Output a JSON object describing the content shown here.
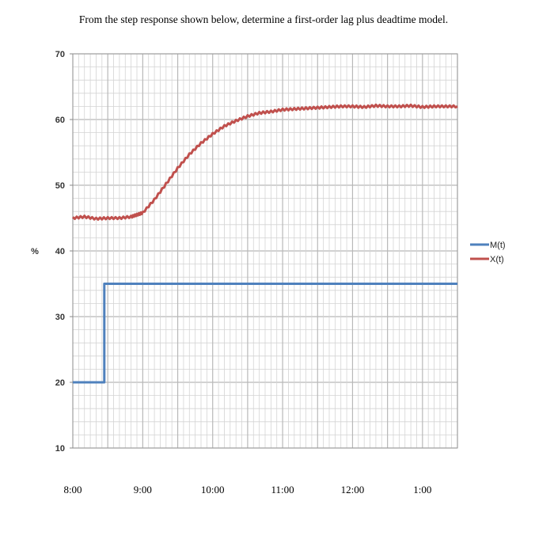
{
  "prompt": "From the step response shown below, determine a first-order lag plus deadtime model.",
  "chart_data": {
    "type": "line",
    "title": "",
    "xlabel": "",
    "ylabel": "%",
    "ylim": [
      10,
      70
    ],
    "y_ticks": [
      10,
      20,
      30,
      40,
      50,
      60,
      70
    ],
    "x_tick_labels": [
      "8:00",
      "9:00",
      "10:00",
      "11:00",
      "12:00",
      "1:00"
    ],
    "x_unit": "minutes after 8:00",
    "xlim": [
      0,
      330
    ],
    "grid": true,
    "legend": "right",
    "series": [
      {
        "name": "M(t)",
        "color": "#4f81bd",
        "x": [
          0,
          27,
          27,
          330
        ],
        "values": [
          20,
          20,
          35,
          35
        ]
      },
      {
        "name": "X(t)",
        "color": "#c0504d",
        "x": [
          0,
          10,
          20,
          30,
          40,
          50,
          55,
          60,
          70,
          80,
          90,
          100,
          110,
          120,
          130,
          140,
          150,
          160,
          170,
          180,
          190,
          200,
          210,
          220,
          230,
          240,
          250,
          260,
          270,
          280,
          290,
          300,
          310,
          320,
          330
        ],
        "values": [
          45,
          45.2,
          44.9,
          45,
          45,
          45.2,
          45.5,
          45.8,
          47.8,
          50.2,
          52.6,
          54.7,
          56.4,
          57.8,
          59,
          59.8,
          60.5,
          61,
          61.2,
          61.5,
          61.6,
          61.7,
          61.8,
          61.9,
          62,
          62,
          61.9,
          62.1,
          62,
          62,
          62.1,
          61.9,
          62,
          62,
          62
        ]
      }
    ]
  }
}
